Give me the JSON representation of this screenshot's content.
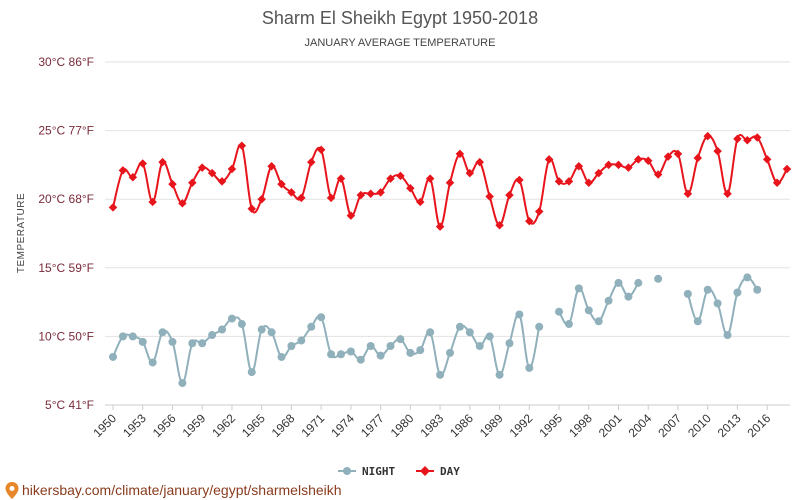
{
  "chart_data": {
    "type": "line",
    "title": "Sharm El Sheikh Egypt 1950-2018",
    "subtitle": "JANUARY AVERAGE TEMPERATURE",
    "ylabel": "TEMPERATURE",
    "yticks": [
      {
        "value": 5,
        "label": "5°C 41°F"
      },
      {
        "value": 10,
        "label": "10°C 50°F"
      },
      {
        "value": 15,
        "label": "15°C 59°F"
      },
      {
        "value": 20,
        "label": "20°C 68°F"
      },
      {
        "value": 25,
        "label": "25°C 77°F"
      },
      {
        "value": 30,
        "label": "30°C 86°F"
      }
    ],
    "ylim": [
      5,
      30
    ],
    "xlim": [
      1950,
      2018
    ],
    "xtick_labels": [
      "1950",
      "1953",
      "1956",
      "1959",
      "1962",
      "1965",
      "1968",
      "1971",
      "1974",
      "1977",
      "1980",
      "1983",
      "1986",
      "1989",
      "1992",
      "1995",
      "1998",
      "2001",
      "2004",
      "2007",
      "2010",
      "2013",
      "2016"
    ],
    "grid": true,
    "legend_position": "bottom",
    "x": [
      1950,
      1951,
      1952,
      1953,
      1954,
      1955,
      1956,
      1957,
      1958,
      1959,
      1960,
      1961,
      1962,
      1963,
      1964,
      1965,
      1966,
      1967,
      1968,
      1969,
      1970,
      1971,
      1972,
      1973,
      1974,
      1975,
      1976,
      1977,
      1978,
      1979,
      1980,
      1981,
      1982,
      1983,
      1984,
      1985,
      1986,
      1987,
      1988,
      1989,
      1990,
      1991,
      1992,
      1993,
      1994,
      1995,
      1996,
      1997,
      1998,
      1999,
      2000,
      2001,
      2002,
      2003,
      2004,
      2005,
      2006,
      2007,
      2008,
      2009,
      2010,
      2011,
      2012,
      2013,
      2014,
      2015,
      2016,
      2017,
      2018
    ],
    "series": [
      {
        "name": "NIGHT",
        "color": "#90b0bb",
        "values": [
          8.5,
          10.0,
          10.0,
          9.6,
          8.1,
          10.3,
          9.6,
          6.6,
          9.5,
          9.5,
          10.1,
          10.5,
          11.3,
          10.9,
          7.4,
          10.5,
          10.3,
          8.5,
          9.3,
          9.7,
          10.7,
          11.4,
          8.7,
          8.7,
          8.9,
          8.3,
          9.3,
          8.6,
          9.3,
          9.8,
          8.8,
          9.0,
          10.3,
          7.2,
          8.8,
          10.7,
          10.3,
          9.3,
          10.0,
          7.2,
          9.5,
          11.6,
          7.7,
          10.7,
          null,
          11.8,
          10.9,
          13.5,
          11.9,
          11.1,
          12.6,
          13.9,
          12.9,
          13.9,
          null,
          14.2,
          null,
          null,
          13.1,
          11.1,
          13.4,
          12.4,
          10.1,
          13.2,
          14.3,
          13.4,
          null,
          null,
          null
        ]
      },
      {
        "name": "DAY",
        "color": "#e8141b",
        "values": [
          19.4,
          22.1,
          21.6,
          22.6,
          19.8,
          22.7,
          21.1,
          19.7,
          21.2,
          22.3,
          21.9,
          21.3,
          22.2,
          23.9,
          19.3,
          20.0,
          22.4,
          21.1,
          20.5,
          20.1,
          22.7,
          23.6,
          20.1,
          21.5,
          18.8,
          20.3,
          20.4,
          20.5,
          21.5,
          21.7,
          20.8,
          19.8,
          21.5,
          18.0,
          21.2,
          23.3,
          21.9,
          22.7,
          20.2,
          18.1,
          20.3,
          21.4,
          18.4,
          19.1,
          22.9,
          21.3,
          21.3,
          22.4,
          21.2,
          21.9,
          22.5,
          22.5,
          22.3,
          22.9,
          22.8,
          21.8,
          23.1,
          23.3,
          20.4,
          23.0,
          24.6,
          23.5,
          20.4,
          24.4,
          24.3,
          24.5,
          22.9,
          21.2,
          22.2
        ]
      }
    ]
  },
  "footer": {
    "url_text": "hikersbay.com/climate/january/egypt/sharmelsheikh"
  }
}
